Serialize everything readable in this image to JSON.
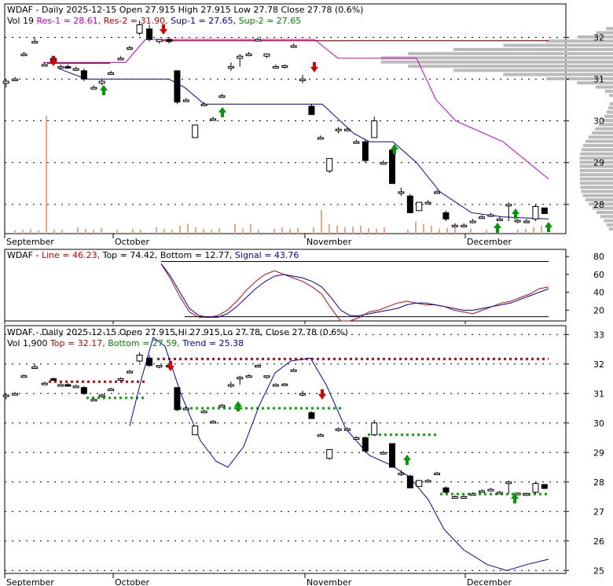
{
  "symbol": "WDAF",
  "panels": {
    "price": {
      "line1_prefix": "WDAF - Daily 2025-12-15 Open 27.915  High 27.915  Low 27.78  Close 27.78 (0.6%)",
      "line2": [
        {
          "text": "Vol 19  ",
          "color": "#000000"
        },
        {
          "text": "Res-1 = 28.61, ",
          "color": "#cc00cc"
        },
        {
          "text": "Res-2 = 31.90, ",
          "color": "#cc0000"
        },
        {
          "text": "Sup-1 = 27.65, ",
          "color": "#0000cc"
        },
        {
          "text": "Sup-2 = 27.65",
          "color": "#008800"
        }
      ]
    },
    "stoch": {
      "line1": [
        {
          "text": "WDAF - ",
          "color": "#000000"
        },
        {
          "text": "Line = 46.23, ",
          "color": "#cc0000"
        },
        {
          "text": "Top = 74.42, Bottom = 12.77, ",
          "color": "#000000"
        },
        {
          "text": "Signal = 43.76",
          "color": "#0000cc"
        }
      ]
    },
    "trend": {
      "line1_prefix": "WDAF - Daily 2025-12-15 Open 27.915,Hi 27.915,Lo 27.78, Close 27.78 (0.6%)",
      "line2": [
        {
          "text": "Vol 1,900  ",
          "color": "#000000"
        },
        {
          "text": "Top = 32.17, ",
          "color": "#cc0000"
        },
        {
          "text": "Bottom = 27.59, ",
          "color": "#008800"
        },
        {
          "text": "Trend = 25.38",
          "color": "#0000cc"
        }
      ]
    }
  },
  "month_labels": [
    {
      "label": "September",
      "index": 0
    },
    {
      "label": "October",
      "index": 21
    },
    {
      "label": "November",
      "index": 44
    },
    {
      "label": "December",
      "index": 64
    }
  ],
  "colors": {
    "res1": "#cc00cc",
    "res2": "#cc0000",
    "sup1": "#0000cc",
    "sup2": "#008800",
    "volume": "#f4a582",
    "profile": "#bbbbbb",
    "line": "#cc0000",
    "signal": "#0000cc",
    "top": "#cc0000",
    "bottom": "#00aa00",
    "trend": "#0000cc"
  },
  "chart_data": [
    {
      "type": "candlestick",
      "title": "WDAF - Daily 2025-12-15 Open 27.915  High 27.915  Low 27.78  Close 27.78 (0.6%)",
      "ylim": [
        27.3,
        32.8
      ],
      "y_ticks": [
        28,
        29,
        30,
        31,
        32
      ],
      "candles": [
        [
          30.9,
          31.0,
          30.8,
          30.95
        ],
        [
          31.0,
          31.05,
          30.95,
          31.0
        ],
        [
          31.6,
          31.65,
          31.55,
          31.6
        ],
        [
          31.9,
          32.0,
          31.85,
          31.9
        ],
        [
          31.35,
          31.4,
          31.3,
          31.35
        ],
        [
          31.5,
          31.55,
          31.45,
          31.45
        ],
        [
          31.3,
          31.35,
          31.25,
          31.3
        ],
        [
          31.3,
          31.35,
          31.25,
          31.28
        ],
        [
          31.25,
          31.3,
          31.2,
          31.25
        ],
        [
          31.2,
          31.25,
          30.95,
          31.0
        ],
        [
          30.8,
          30.85,
          30.75,
          30.8
        ],
        [
          30.9,
          31.0,
          30.85,
          30.95
        ],
        [
          31.15,
          31.2,
          31.1,
          31.15
        ],
        [
          31.5,
          31.55,
          31.45,
          31.5
        ],
        [
          31.75,
          31.8,
          31.7,
          31.75
        ],
        [
          32.1,
          32.4,
          32.05,
          32.3
        ],
        [
          32.2,
          32.3,
          31.9,
          31.95
        ],
        [
          31.9,
          31.95,
          31.85,
          31.95
        ],
        [
          31.95,
          32.0,
          31.85,
          31.9
        ],
        [
          31.2,
          31.2,
          30.4,
          30.45
        ],
        [
          30.5,
          30.55,
          30.45,
          30.5
        ],
        [
          29.6,
          29.9,
          29.6,
          29.9
        ],
        [
          30.4,
          30.45,
          30.35,
          30.4
        ],
        [
          30.05,
          30.1,
          30.0,
          30.05
        ],
        [
          30.6,
          30.65,
          30.55,
          30.6
        ],
        [
          31.3,
          31.4,
          31.2,
          31.3
        ],
        [
          31.5,
          31.6,
          31.3,
          31.55
        ],
        [
          31.6,
          31.65,
          31.55,
          31.6
        ],
        [
          31.95,
          32.0,
          31.9,
          31.95
        ],
        [
          31.55,
          31.6,
          31.5,
          31.6
        ],
        [
          31.3,
          31.35,
          31.25,
          31.3
        ],
        [
          31.3,
          31.35,
          31.25,
          31.32
        ],
        [
          31.8,
          31.85,
          31.75,
          31.8
        ],
        [
          31.0,
          31.1,
          30.9,
          31.0
        ],
        [
          30.35,
          30.4,
          30.15,
          30.15
        ],
        [
          29.6,
          29.65,
          29.55,
          29.6
        ],
        [
          28.8,
          29.1,
          28.75,
          29.1
        ],
        [
          29.8,
          29.85,
          29.7,
          29.8
        ],
        [
          29.8,
          29.85,
          29.75,
          29.8
        ],
        [
          29.5,
          29.55,
          29.45,
          29.5
        ],
        [
          29.5,
          29.55,
          29.0,
          29.05
        ],
        [
          29.6,
          30.1,
          29.6,
          30.0
        ],
        [
          29.0,
          29.05,
          28.95,
          29.0
        ],
        [
          29.3,
          29.3,
          28.5,
          28.5
        ],
        [
          28.3,
          28.4,
          28.2,
          28.3
        ],
        [
          28.2,
          28.25,
          27.8,
          27.8
        ],
        [
          27.85,
          28.05,
          27.85,
          28.05
        ],
        [
          28.05,
          28.1,
          28.0,
          28.05
        ],
        [
          28.3,
          28.35,
          28.25,
          28.3
        ],
        [
          27.8,
          27.85,
          27.6,
          27.65
        ],
        [
          27.5,
          27.55,
          27.45,
          27.5
        ],
        [
          27.5,
          27.55,
          27.45,
          27.5
        ],
        [
          27.6,
          27.65,
          27.55,
          27.6
        ],
        [
          27.7,
          27.75,
          27.65,
          27.7
        ],
        [
          27.75,
          27.8,
          27.7,
          27.75
        ],
        [
          27.65,
          27.7,
          27.6,
          27.65
        ],
        [
          28.0,
          28.05,
          27.6,
          28.0
        ],
        [
          27.6,
          27.65,
          27.55,
          27.62
        ],
        [
          27.6,
          27.65,
          27.55,
          27.6
        ],
        [
          27.65,
          28.0,
          27.6,
          27.95
        ],
        [
          27.915,
          27.915,
          27.78,
          27.78
        ]
      ],
      "candle_x": [
        5,
        15,
        25,
        37,
        48,
        58,
        66,
        74,
        83,
        92,
        103,
        112,
        122,
        133,
        143,
        154,
        165,
        176,
        187,
        196,
        206,
        216,
        226,
        236,
        246,
        256,
        266,
        276,
        286,
        296,
        306,
        316,
        326,
        336,
        346,
        356,
        366,
        376,
        386,
        396,
        406,
        416,
        426,
        436,
        446,
        456,
        466,
        476,
        486,
        496,
        506,
        516,
        526,
        536,
        546,
        556,
        566,
        576,
        586,
        596,
        606
      ],
      "volume": [
        0,
        0,
        0,
        0,
        0,
        1,
        1,
        1,
        1,
        1,
        1,
        1,
        1,
        1,
        1,
        1,
        1,
        1,
        1,
        1,
        1,
        1,
        1,
        1,
        1,
        1,
        1,
        1,
        1,
        1,
        1,
        1,
        1,
        1,
        1,
        1,
        1,
        1,
        1,
        1,
        1,
        1,
        1,
        1,
        1,
        1,
        1,
        1,
        1,
        1,
        1,
        1,
        1,
        1,
        1,
        1,
        1,
        1,
        1,
        1,
        19
      ]
    },
    {
      "type": "line",
      "title": "WDAF - Line = 46.23, Top = 74.42, Bottom = 12.77, Signal = 43.76",
      "ylim": [
        8,
        88
      ],
      "y_ticks": [
        20,
        40,
        60,
        80
      ],
      "series": [
        {
          "name": "Line",
          "values": [
            72,
            55,
            35,
            18,
            12,
            12,
            14,
            20,
            30,
            42,
            52,
            60,
            64,
            60,
            56,
            52,
            46,
            38,
            22,
            8,
            8,
            12,
            18,
            20,
            24,
            28,
            30,
            28,
            26,
            26,
            24,
            20,
            18,
            16,
            20,
            24,
            28,
            30,
            34,
            38,
            44,
            46
          ]
        },
        {
          "name": "Signal",
          "values": [
            72,
            58,
            40,
            22,
            14,
            12,
            12,
            16,
            24,
            34,
            44,
            52,
            58,
            60,
            58,
            56,
            52,
            46,
            34,
            20,
            14,
            14,
            16,
            18,
            20,
            22,
            26,
            28,
            28,
            26,
            24,
            22,
            20,
            20,
            22,
            24,
            26,
            28,
            32,
            36,
            40,
            44
          ]
        }
      ]
    },
    {
      "type": "candlestick",
      "title": "WDAF - Daily 2025-12-15 Open 27.915,Hi 27.915,Lo 27.78, Close 27.78 (0.6%)",
      "ylim": [
        24.9,
        33.3
      ],
      "y_ticks": [
        25,
        26,
        27,
        28,
        29,
        30,
        31,
        32,
        33
      ],
      "series": [
        {
          "name": "Top",
          "values": [
            31.4,
            31.4,
            32.17,
            32.17
          ]
        },
        {
          "name": "Bottom",
          "values": [
            30.7,
            30.7,
            30.5,
            29.6,
            27.59
          ]
        },
        {
          "name": "Trend",
          "values": [
            29.9,
            33.0,
            30.0,
            28.5,
            30.0,
            32.2,
            30.5,
            28.0,
            27.2,
            25.5,
            25.0,
            25.38
          ]
        }
      ]
    }
  ]
}
